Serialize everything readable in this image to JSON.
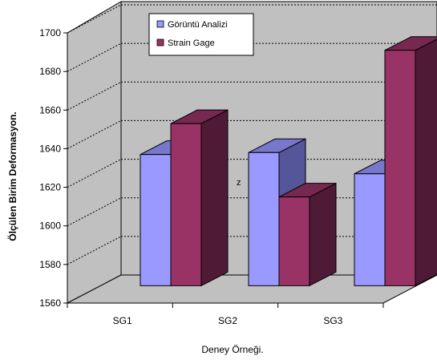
{
  "chart_data": {
    "type": "bar",
    "categories": [
      "SG1",
      "SG2",
      "SG3"
    ],
    "series": [
      {
        "name": "Görüntü Analizi",
        "values": [
          1628,
          1629,
          1618
        ]
      },
      {
        "name": "Strain Gage",
        "values": [
          1644,
          1606,
          1682
        ]
      }
    ],
    "xlabel": "Deney Örneği.",
    "ylabel": "Ölçülen Birim Deformasyon.",
    "ylim": [
      1560,
      1700
    ],
    "yticks": [
      "1560",
      "1580",
      "1600",
      "1620",
      "1640",
      "1660",
      "1680",
      "1700"
    ],
    "annotation": "z",
    "legend_position": "top-center",
    "grid": true,
    "style": "3d-clustered-column",
    "colors": {
      "series1_front": "#9999ff",
      "series1_top": "#7777cc",
      "series1_side": "#555599",
      "series2_front": "#993366",
      "series2_top": "#772850",
      "series2_side": "#4f1a35",
      "wall": "#c0c0c0",
      "floor": "#c0c0c0"
    }
  }
}
